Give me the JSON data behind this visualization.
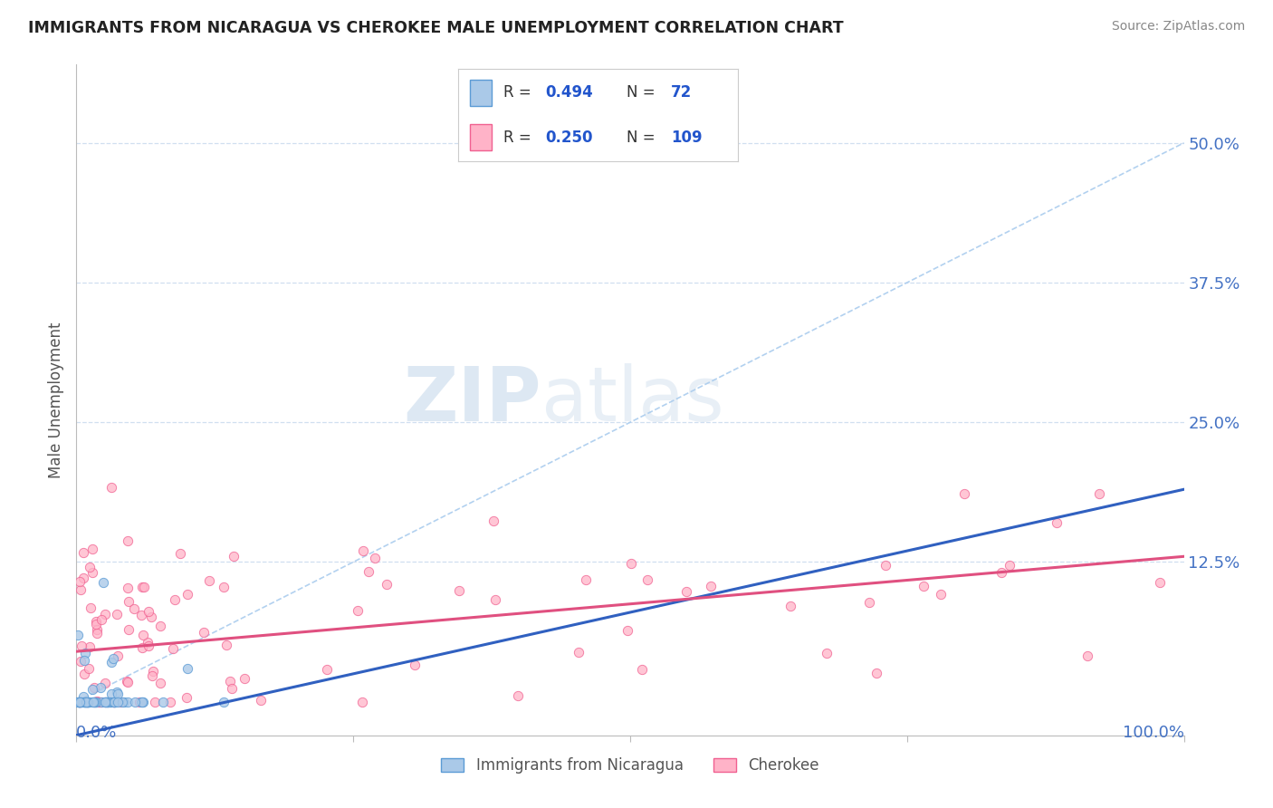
{
  "title": "IMMIGRANTS FROM NICARAGUA VS CHEROKEE MALE UNEMPLOYMENT CORRELATION CHART",
  "source": "Source: ZipAtlas.com",
  "ylabel": "Male Unemployment",
  "ytick_vals": [
    0.125,
    0.25,
    0.375,
    0.5
  ],
  "ytick_labels": [
    "12.5%",
    "25.0%",
    "37.5%",
    "50.0%"
  ],
  "xlim": [
    0.0,
    1.0
  ],
  "ylim": [
    -0.03,
    0.57
  ],
  "series1_name": "Immigrants from Nicaragua",
  "series1_fill_color": "#aac9e8",
  "series1_edge_color": "#5b9bd5",
  "series1_R": "0.494",
  "series1_N": "72",
  "series2_name": "Cherokee",
  "series2_fill_color": "#ffb3c8",
  "series2_edge_color": "#f06090",
  "series2_R": "0.250",
  "series2_N": "109",
  "trend1_color": "#3060c0",
  "trend1_style": "-",
  "trend1_intercept": -0.03,
  "trend1_slope": 0.22,
  "trend2_color": "#e05080",
  "trend2_style": "-",
  "trend2_intercept": 0.045,
  "trend2_slope": 0.085,
  "refline_color": "#aaccee",
  "refline_style": "--",
  "watermark_text": "ZIP",
  "watermark_text2": "atlas",
  "background_color": "#ffffff",
  "title_color": "#222222",
  "axis_color": "#4472c4",
  "label_color": "#555555",
  "legend_value_color": "#2255cc",
  "grid_color": "#d0dff0",
  "grid_style": "--",
  "source_color": "#888888"
}
